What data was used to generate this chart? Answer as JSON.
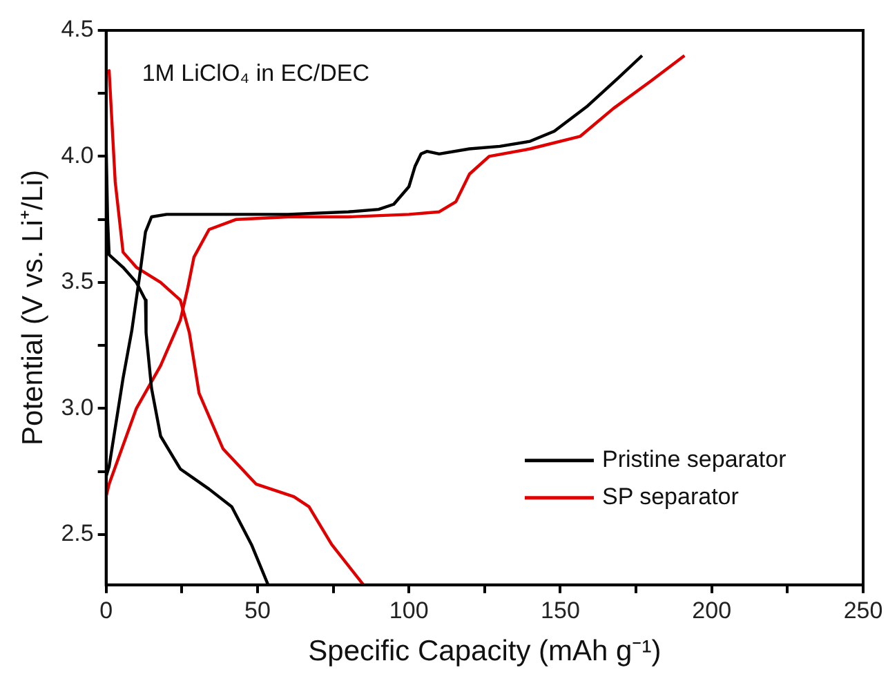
{
  "chart_data": {
    "type": "line",
    "xlabel": "Specific Capacity (mAh g⁻¹)",
    "ylabel": "Potential (V vs. Li⁺/Li)",
    "annotations": [
      "1M LiClO₄ in EC/DEC"
    ],
    "xlim": [
      0,
      250
    ],
    "xticks": [
      0,
      {
        "value": 25,
        "label": null
      },
      50,
      {
        "value": 75,
        "label": null
      },
      100,
      {
        "value": 125,
        "label": null
      },
      150,
      {
        "value": 175,
        "label": null
      },
      200,
      {
        "value": 225,
        "label": null
      },
      250
    ],
    "ylim": [
      2.3,
      4.5
    ],
    "yticks": [
      {
        "value": 2.5,
        "label": "2.5"
      },
      {
        "value": 2.75,
        "label": null
      },
      {
        "value": 3,
        "label": "3.0"
      },
      {
        "value": 3.25,
        "label": null
      },
      {
        "value": 3.5,
        "label": "3.5"
      },
      {
        "value": 3.75,
        "label": null
      },
      {
        "value": 4,
        "label": "4.0"
      },
      {
        "value": 4.25,
        "label": null
      },
      {
        "value": 4.5,
        "label": "4.5"
      }
    ],
    "grid": false,
    "legend": "bottom right",
    "marker": "none",
    "line_style": "solid",
    "series": [
      {
        "name": "Pristine separator",
        "color": "#000000",
        "x": [
          0,
          1,
          5.6,
          8.5,
          11,
          13,
          15,
          20,
          40,
          60,
          80,
          90,
          95,
          100,
          102,
          104,
          106,
          110,
          120,
          130,
          140,
          148,
          159,
          169,
          177
        ],
        "values": [
          2.73,
          2.77,
          3.12,
          3.31,
          3.52,
          3.7,
          3.76,
          3.77,
          3.77,
          3.77,
          3.78,
          3.79,
          3.81,
          3.88,
          3.96,
          4.01,
          4.02,
          4.01,
          4.03,
          4.04,
          4.06,
          4.1,
          4.2,
          4.31,
          4.4
        ]
      },
      {
        "color": "#000000",
        "x": [
          0,
          0.5,
          1,
          5.6,
          10,
          13,
          13.2,
          15,
          18,
          24.5,
          34,
          41.5,
          48,
          53.5
        ],
        "values": [
          4.05,
          3.75,
          3.61,
          3.56,
          3.5,
          3.43,
          3.3,
          3.08,
          2.89,
          2.76,
          2.68,
          2.61,
          2.46,
          2.3
        ]
      },
      {
        "name": "SP separator",
        "color": "#e00000",
        "x": [
          0,
          1,
          10,
          18,
          24.5,
          27,
          29,
          34,
          43,
          60,
          80,
          100,
          110,
          115.5,
          120,
          126.5,
          140,
          156.6,
          167.5,
          180,
          191
        ],
        "values": [
          2.65,
          2.7,
          3.0,
          3.17,
          3.35,
          3.48,
          3.6,
          3.71,
          3.75,
          3.76,
          3.76,
          3.77,
          3.78,
          3.82,
          3.93,
          4.0,
          4.03,
          4.08,
          4.19,
          4.3,
          4.4
        ]
      },
      {
        "color": "#e00000",
        "x": [
          0,
          1,
          3,
          5.6,
          10,
          18,
          24.5,
          27.5,
          30.7,
          38.6,
          49.5,
          62,
          67,
          74.5,
          85
        ],
        "values": [
          4.33,
          4.34,
          3.9,
          3.62,
          3.56,
          3.5,
          3.43,
          3.3,
          3.06,
          2.84,
          2.7,
          2.65,
          2.61,
          2.46,
          2.3
        ]
      }
    ]
  }
}
